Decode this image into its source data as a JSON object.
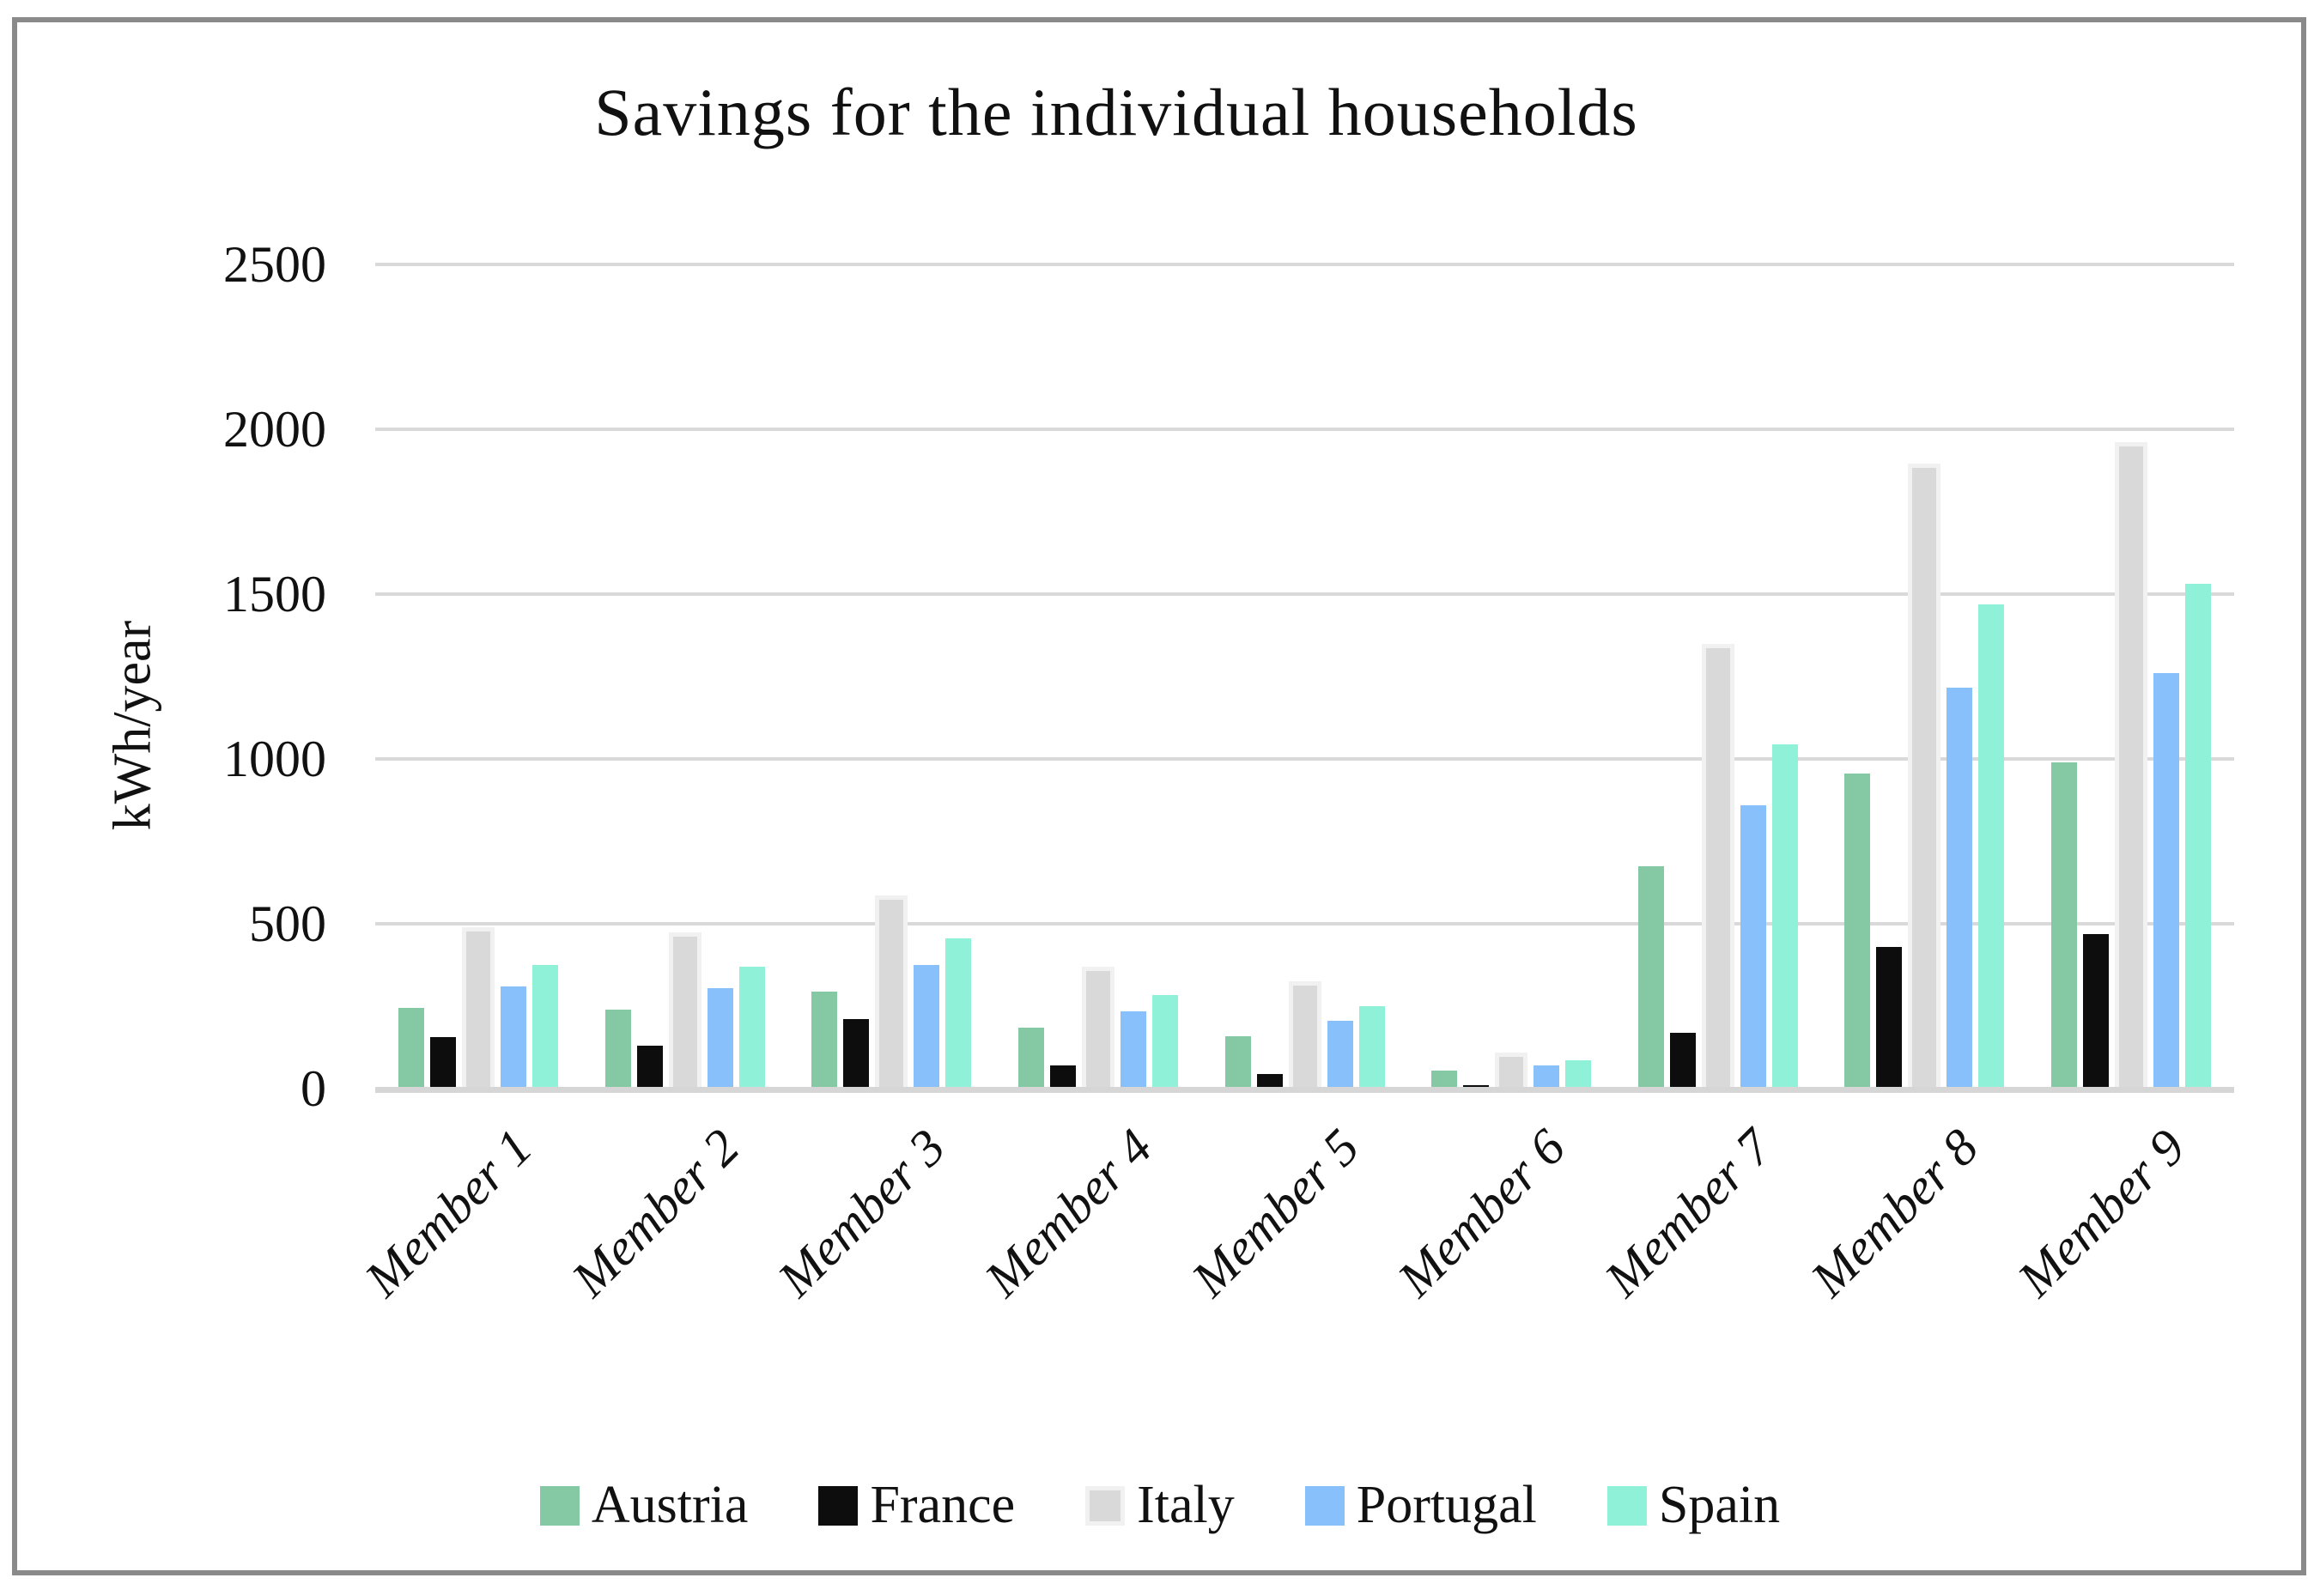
{
  "title": "Savings for the individual households",
  "colors": {
    "austria": "#85C8A4",
    "france": "#0D0D0D",
    "italy_fill": "#D9D9D9",
    "italy_border": "#F1F1F1",
    "portugal": "#87C0FA",
    "spain": "#8FF1D7",
    "gridline": "#D9D9D9",
    "frame_border": "#8A8A8A"
  },
  "chart_data": {
    "type": "bar",
    "title": "Savings for the individual households",
    "xlabel": "",
    "ylabel": "kWh/year",
    "ylim": [
      0,
      2500
    ],
    "yticks": [
      0,
      500,
      1000,
      1500,
      2000,
      2500
    ],
    "grid": true,
    "legend_position": "bottom",
    "categories": [
      "Member 1",
      "Member 2",
      "Member 3",
      "Member 4",
      "Member 5",
      "Member 6",
      "Member 7",
      "Member 8",
      "Member 9"
    ],
    "series": [
      {
        "name": "Austria",
        "color": "#85C8A4",
        "values": [
          245,
          240,
          295,
          185,
          160,
          55,
          675,
          955,
          990
        ]
      },
      {
        "name": "France",
        "color": "#0D0D0D",
        "values": [
          155,
          130,
          210,
          70,
          45,
          10,
          170,
          430,
          470
        ]
      },
      {
        "name": "Italy",
        "color": "#D9D9D9",
        "border_color": "#F1F1F1",
        "values": [
          490,
          475,
          585,
          370,
          325,
          110,
          1350,
          1895,
          1960
        ]
      },
      {
        "name": "Portugal",
        "color": "#87C0FA",
        "values": [
          310,
          305,
          375,
          235,
          205,
          70,
          860,
          1215,
          1260
        ]
      },
      {
        "name": "Spain",
        "color": "#8FF1D7",
        "values": [
          375,
          370,
          455,
          285,
          250,
          85,
          1045,
          1470,
          1530
        ]
      }
    ]
  }
}
